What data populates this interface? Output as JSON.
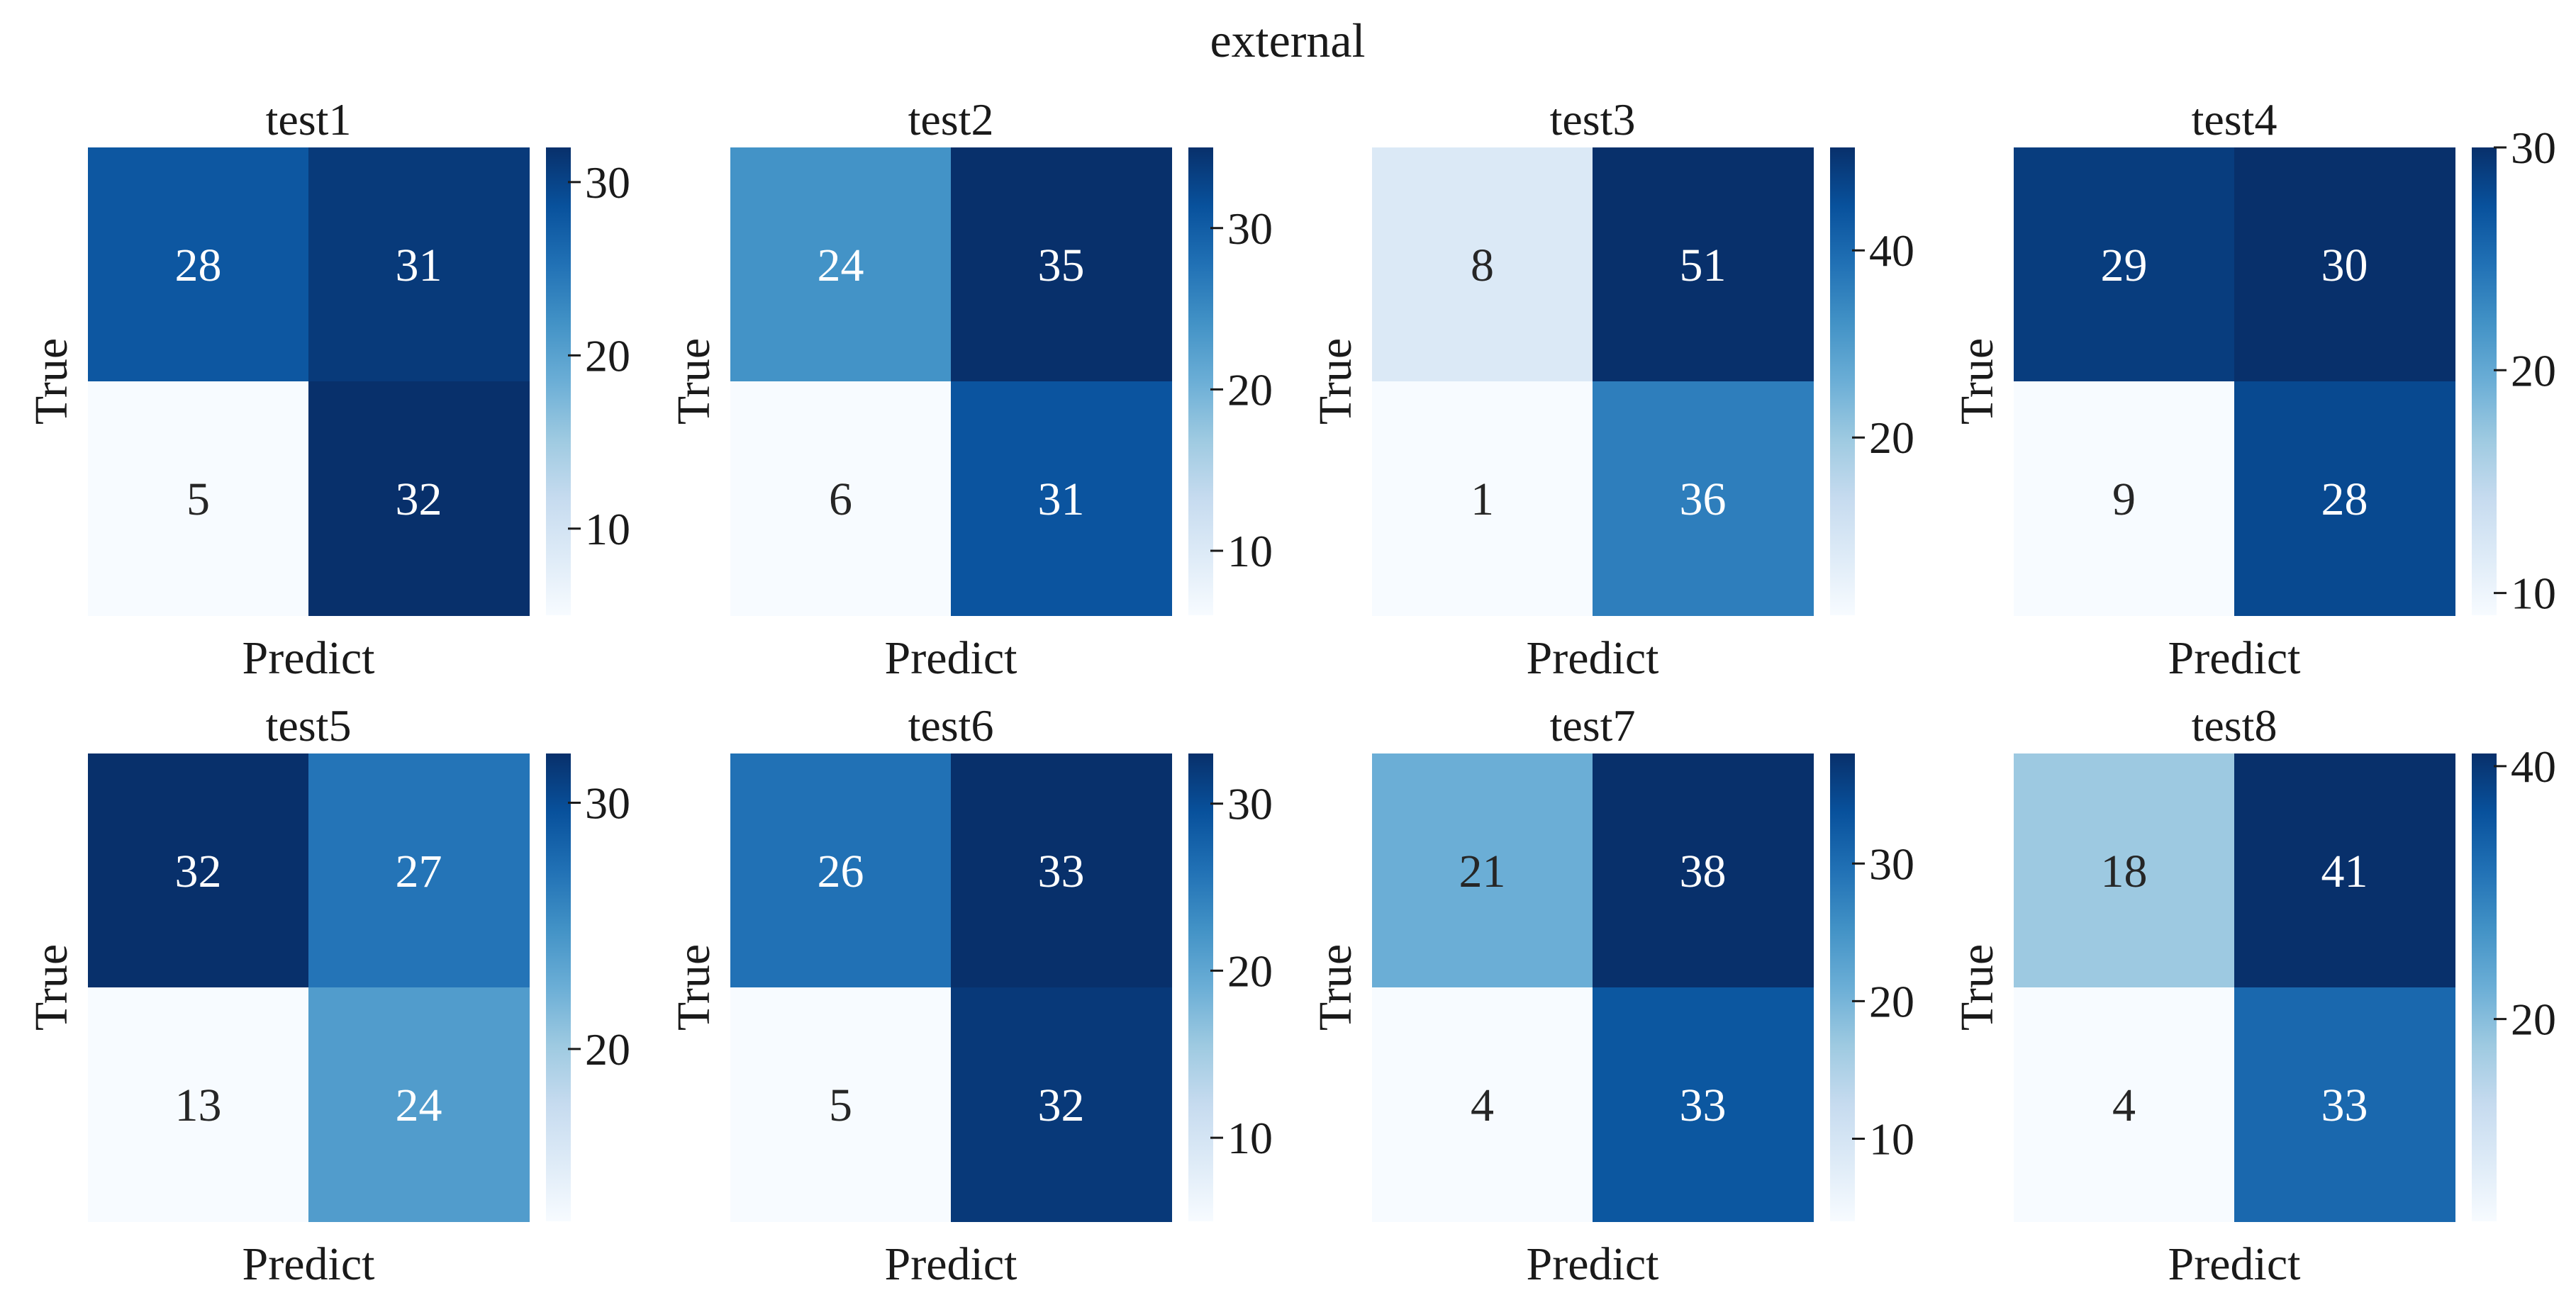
{
  "figure": {
    "suptitle": "external"
  },
  "chart_data": [
    {
      "type": "heatmap",
      "title": "test1",
      "xlabel": "Predict",
      "ylabel": "True",
      "values": [
        [
          28,
          31
        ],
        [
          5,
          32
        ]
      ],
      "colormap": "Blues",
      "colorbar": {
        "min": 5,
        "max": 32,
        "ticks": [
          10,
          20,
          30
        ]
      }
    },
    {
      "type": "heatmap",
      "title": "test2",
      "xlabel": "Predict",
      "ylabel": "True",
      "values": [
        [
          24,
          35
        ],
        [
          6,
          31
        ]
      ],
      "colormap": "Blues",
      "colorbar": {
        "min": 6,
        "max": 35,
        "ticks": [
          10,
          20,
          30
        ]
      }
    },
    {
      "type": "heatmap",
      "title": "test3",
      "xlabel": "Predict",
      "ylabel": "True",
      "values": [
        [
          8,
          51
        ],
        [
          1,
          36
        ]
      ],
      "colormap": "Blues",
      "colorbar": {
        "min": 1,
        "max": 51,
        "ticks": [
          20,
          40
        ]
      }
    },
    {
      "type": "heatmap",
      "title": "test4",
      "xlabel": "Predict",
      "ylabel": "True",
      "values": [
        [
          29,
          30
        ],
        [
          9,
          28
        ]
      ],
      "colormap": "Blues",
      "colorbar": {
        "min": 9,
        "max": 30,
        "ticks": [
          10,
          20,
          30
        ]
      }
    },
    {
      "type": "heatmap",
      "title": "test5",
      "xlabel": "Predict",
      "ylabel": "True",
      "values": [
        [
          32,
          27
        ],
        [
          13,
          24
        ]
      ],
      "colormap": "Blues",
      "colorbar": {
        "min": 13,
        "max": 32,
        "ticks": [
          20,
          30
        ]
      }
    },
    {
      "type": "heatmap",
      "title": "test6",
      "xlabel": "Predict",
      "ylabel": "True",
      "values": [
        [
          26,
          33
        ],
        [
          5,
          32
        ]
      ],
      "colormap": "Blues",
      "colorbar": {
        "min": 5,
        "max": 33,
        "ticks": [
          10,
          20,
          30
        ]
      }
    },
    {
      "type": "heatmap",
      "title": "test7",
      "xlabel": "Predict",
      "ylabel": "True",
      "values": [
        [
          21,
          38
        ],
        [
          4,
          33
        ]
      ],
      "colormap": "Blues",
      "colorbar": {
        "min": 4,
        "max": 38,
        "ticks": [
          10,
          20,
          30
        ]
      }
    },
    {
      "type": "heatmap",
      "title": "test8",
      "xlabel": "Predict",
      "ylabel": "True",
      "values": [
        [
          18,
          41
        ],
        [
          4,
          33
        ]
      ],
      "colormap": "Blues",
      "colorbar": {
        "min": 4,
        "max": 41,
        "ticks": [
          20,
          40
        ]
      }
    }
  ]
}
